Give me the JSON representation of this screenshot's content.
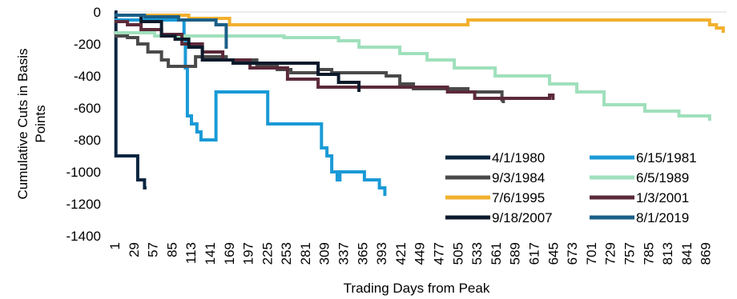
{
  "chart_data": {
    "type": "line",
    "title": "",
    "xlabel": "Trading Days from Peak",
    "ylabel": "Cumulative Cuts in Basis Points",
    "ylim": [
      -1400,
      0
    ],
    "yticks": [
      0,
      -200,
      -400,
      -600,
      -800,
      -1000,
      -1200,
      -1400
    ],
    "xlim": [
      1,
      900
    ],
    "xticks": [
      1,
      29,
      57,
      85,
      113,
      141,
      169,
      197,
      225,
      253,
      281,
      309,
      337,
      365,
      393,
      421,
      449,
      477,
      505,
      533,
      561,
      589,
      617,
      645,
      673,
      701,
      729,
      757,
      785,
      813,
      841,
      869
    ],
    "grid": false,
    "legend_position": "bottom-right",
    "series": [
      {
        "name": "4/1/1980",
        "color": "#0b2540",
        "points": [
          [
            1,
            0
          ],
          [
            3,
            0
          ],
          [
            3,
            -900
          ],
          [
            35,
            -900
          ],
          [
            35,
            -1050
          ],
          [
            45,
            -1050
          ],
          [
            45,
            -1100
          ],
          [
            48,
            -1100
          ]
        ]
      },
      {
        "name": "6/15/1981",
        "color": "#1a9ad6",
        "points": [
          [
            1,
            -50
          ],
          [
            103,
            -50
          ],
          [
            103,
            -150
          ],
          [
            105,
            -150
          ],
          [
            105,
            -350
          ],
          [
            108,
            -350
          ],
          [
            108,
            -650
          ],
          [
            114,
            -650
          ],
          [
            114,
            -700
          ],
          [
            122,
            -700
          ],
          [
            122,
            -750
          ],
          [
            128,
            -750
          ],
          [
            128,
            -800
          ],
          [
            150,
            -800
          ],
          [
            150,
            -500
          ],
          [
            226,
            -500
          ],
          [
            226,
            -700
          ],
          [
            305,
            -700
          ],
          [
            305,
            -850
          ],
          [
            313,
            -850
          ],
          [
            313,
            -900
          ],
          [
            320,
            -900
          ],
          [
            320,
            -1000
          ],
          [
            328,
            -1000
          ],
          [
            328,
            -1050
          ],
          [
            332,
            -1050
          ],
          [
            332,
            -1000
          ],
          [
            368,
            -1000
          ],
          [
            368,
            -1050
          ],
          [
            390,
            -1050
          ],
          [
            390,
            -1100
          ],
          [
            398,
            -1100
          ],
          [
            398,
            -1150
          ]
        ]
      },
      {
        "name": "9/3/1984",
        "color": "#4a4a4a",
        "points": [
          [
            1,
            -150
          ],
          [
            20,
            -150
          ],
          [
            20,
            -160
          ],
          [
            35,
            -160
          ],
          [
            35,
            -200
          ],
          [
            50,
            -200
          ],
          [
            50,
            -250
          ],
          [
            70,
            -250
          ],
          [
            70,
            -300
          ],
          [
            80,
            -300
          ],
          [
            80,
            -340
          ],
          [
            120,
            -340
          ],
          [
            120,
            -280
          ],
          [
            165,
            -280
          ],
          [
            165,
            -300
          ],
          [
            210,
            -300
          ],
          [
            210,
            -340
          ],
          [
            240,
            -340
          ],
          [
            240,
            -360
          ],
          [
            260,
            -360
          ],
          [
            260,
            -380
          ],
          [
            300,
            -380
          ],
          [
            300,
            -360
          ],
          [
            320,
            -360
          ],
          [
            320,
            -380
          ],
          [
            400,
            -380
          ],
          [
            400,
            -400
          ],
          [
            420,
            -400
          ],
          [
            420,
            -450
          ],
          [
            440,
            -450
          ],
          [
            440,
            -480
          ],
          [
            520,
            -480
          ],
          [
            520,
            -500
          ],
          [
            570,
            -500
          ],
          [
            570,
            -550
          ],
          [
            572,
            -550
          ],
          [
            572,
            -570
          ]
        ]
      },
      {
        "name": "6/5/1989",
        "color": "#9fe0bc",
        "points": [
          [
            1,
            -130
          ],
          [
            60,
            -130
          ],
          [
            60,
            -150
          ],
          [
            250,
            -150
          ],
          [
            250,
            -160
          ],
          [
            330,
            -160
          ],
          [
            330,
            -180
          ],
          [
            360,
            -180
          ],
          [
            360,
            -220
          ],
          [
            420,
            -220
          ],
          [
            420,
            -260
          ],
          [
            460,
            -260
          ],
          [
            460,
            -300
          ],
          [
            500,
            -300
          ],
          [
            500,
            -350
          ],
          [
            560,
            -350
          ],
          [
            560,
            -400
          ],
          [
            640,
            -400
          ],
          [
            640,
            -450
          ],
          [
            680,
            -450
          ],
          [
            680,
            -500
          ],
          [
            720,
            -500
          ],
          [
            720,
            -580
          ],
          [
            780,
            -580
          ],
          [
            780,
            -620
          ],
          [
            830,
            -620
          ],
          [
            830,
            -650
          ],
          [
            875,
            -650
          ],
          [
            875,
            -680
          ]
        ]
      },
      {
        "name": "7/6/1995",
        "color": "#f2b02e",
        "points": [
          [
            1,
            -20
          ],
          [
            110,
            -20
          ],
          [
            110,
            -40
          ],
          [
            170,
            -40
          ],
          [
            170,
            -80
          ],
          [
            520,
            -80
          ],
          [
            520,
            -50
          ],
          [
            875,
            -50
          ],
          [
            875,
            -80
          ],
          [
            885,
            -80
          ],
          [
            885,
            -100
          ],
          [
            895,
            -100
          ],
          [
            895,
            -130
          ]
        ]
      },
      {
        "name": "1/3/2001",
        "color": "#5b2a3a",
        "points": [
          [
            1,
            -60
          ],
          [
            20,
            -60
          ],
          [
            20,
            -80
          ],
          [
            40,
            -80
          ],
          [
            40,
            -110
          ],
          [
            70,
            -110
          ],
          [
            70,
            -140
          ],
          [
            100,
            -140
          ],
          [
            100,
            -200
          ],
          [
            130,
            -200
          ],
          [
            130,
            -250
          ],
          [
            160,
            -250
          ],
          [
            160,
            -300
          ],
          [
            200,
            -300
          ],
          [
            200,
            -350
          ],
          [
            255,
            -350
          ],
          [
            255,
            -420
          ],
          [
            300,
            -420
          ],
          [
            300,
            -470
          ],
          [
            490,
            -470
          ],
          [
            490,
            -500
          ],
          [
            530,
            -500
          ],
          [
            530,
            -540
          ],
          [
            640,
            -540
          ],
          [
            640,
            -520
          ],
          [
            645,
            -520
          ],
          [
            645,
            -550
          ]
        ]
      },
      {
        "name": "9/18/2007",
        "color": "#0b1a2b",
        "points": [
          [
            1,
            -20
          ],
          [
            40,
            -20
          ],
          [
            40,
            -60
          ],
          [
            70,
            -60
          ],
          [
            70,
            -150
          ],
          [
            90,
            -150
          ],
          [
            90,
            -170
          ],
          [
            110,
            -170
          ],
          [
            110,
            -220
          ],
          [
            130,
            -220
          ],
          [
            130,
            -300
          ],
          [
            175,
            -300
          ],
          [
            175,
            -320
          ],
          [
            300,
            -320
          ],
          [
            300,
            -390
          ],
          [
            330,
            -390
          ],
          [
            330,
            -440
          ],
          [
            360,
            -440
          ],
          [
            360,
            -500
          ]
        ]
      },
      {
        "name": "8/1/2019",
        "color": "#1b5f87",
        "points": [
          [
            1,
            -20
          ],
          [
            45,
            -20
          ],
          [
            45,
            -30
          ],
          [
            95,
            -30
          ],
          [
            95,
            -50
          ],
          [
            150,
            -50
          ],
          [
            150,
            -80
          ],
          [
            165,
            -80
          ],
          [
            165,
            -230
          ]
        ]
      }
    ]
  }
}
